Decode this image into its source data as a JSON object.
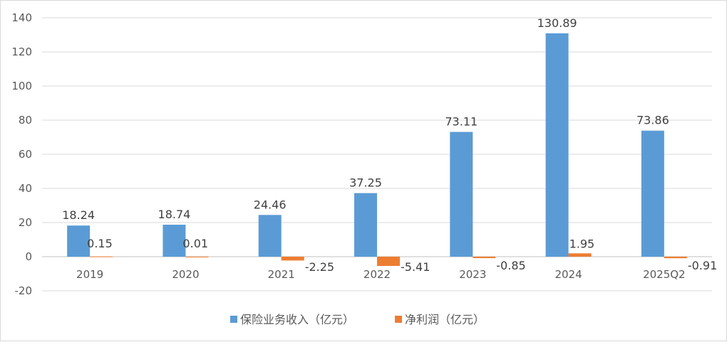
{
  "chart_data": {
    "type": "bar",
    "categories": [
      "2019",
      "2020",
      "2021",
      "2022",
      "2023",
      "2024",
      "2025Q2"
    ],
    "series": [
      {
        "name": "保险业务收入（亿元）",
        "color": "#5b9bd5",
        "values": [
          18.24,
          18.74,
          24.46,
          37.25,
          73.11,
          130.89,
          73.86
        ]
      },
      {
        "name": "净利润（亿元）",
        "color": "#ed7d31",
        "values": [
          0.15,
          0.01,
          -2.25,
          -5.41,
          -0.85,
          1.95,
          -0.91
        ]
      }
    ],
    "data_labels": [
      [
        "18.24",
        "18.74",
        "24.46",
        "37.25",
        "73.11",
        "130.89",
        "73.86"
      ],
      [
        "0.15",
        "0.01",
        "-2.25",
        "-5.41",
        "-0.85",
        "1.95",
        "-0.91"
      ]
    ],
    "y_ticks": [
      "-20",
      "0",
      "20",
      "40",
      "60",
      "80",
      "100",
      "120",
      "140"
    ],
    "ylim": [
      -20,
      140
    ],
    "grid": true,
    "legend_position": "bottom"
  }
}
